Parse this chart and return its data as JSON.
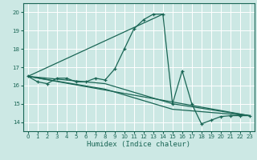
{
  "xlabel": "Humidex (Indice chaleur)",
  "bg_color": "#cce8e4",
  "grid_color": "#ffffff",
  "line_color": "#1a6655",
  "xlim": [
    -0.5,
    23.5
  ],
  "ylim": [
    13.5,
    20.5
  ],
  "xticks": [
    0,
    1,
    2,
    3,
    4,
    5,
    6,
    7,
    8,
    9,
    10,
    11,
    12,
    13,
    14,
    15,
    16,
    17,
    18,
    19,
    20,
    21,
    22,
    23
  ],
  "yticks": [
    14,
    15,
    16,
    17,
    18,
    19,
    20
  ],
  "series1_x": [
    0,
    1,
    2,
    3,
    4,
    5,
    6,
    7,
    8,
    9,
    10,
    11,
    12,
    13,
    14,
    15,
    16,
    17,
    18,
    19,
    20,
    21,
    22,
    23
  ],
  "series1_y": [
    16.5,
    16.2,
    16.1,
    16.4,
    16.4,
    16.2,
    16.2,
    16.4,
    16.3,
    16.9,
    18.0,
    19.1,
    19.6,
    19.9,
    19.9,
    15.0,
    16.8,
    15.0,
    13.9,
    14.1,
    14.3,
    14.35,
    14.35,
    14.35
  ],
  "line2_x": [
    0,
    14
  ],
  "line2_y": [
    16.5,
    19.9
  ],
  "line3_x": [
    0,
    23
  ],
  "line3_y": [
    16.5,
    14.35
  ],
  "line4_x": [
    0,
    8,
    15,
    23
  ],
  "line4_y": [
    16.5,
    16.1,
    15.0,
    14.35
  ],
  "line5_x": [
    0,
    8,
    15,
    23
  ],
  "line5_y": [
    16.5,
    15.8,
    14.7,
    14.35
  ]
}
